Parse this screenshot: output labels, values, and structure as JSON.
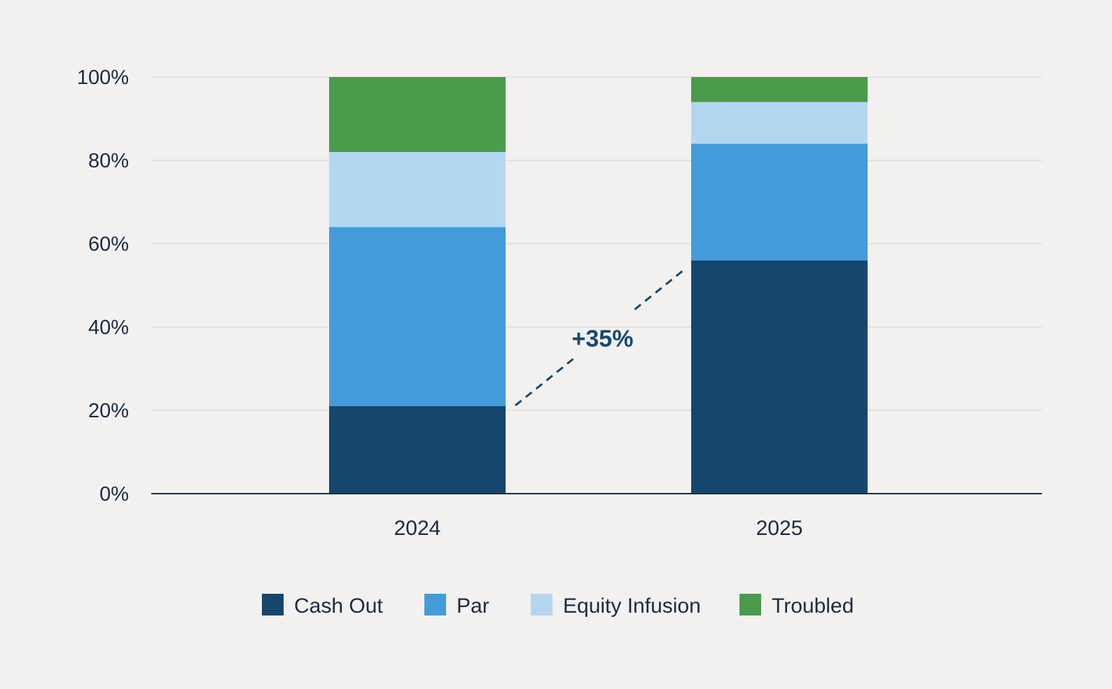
{
  "chart_data": {
    "type": "bar",
    "stacked": true,
    "categories": [
      "2024",
      "2025"
    ],
    "series": [
      {
        "name": "Cash Out",
        "color": "#15476e",
        "values": [
          21,
          56
        ]
      },
      {
        "name": "Par",
        "color": "#449bdb",
        "values": [
          43,
          28
        ]
      },
      {
        "name": "Equity Infusion",
        "color": "#b4d7f1",
        "values": [
          18,
          10
        ]
      },
      {
        "name": "Troubled",
        "color": "#4a9b4b",
        "values": [
          18,
          6
        ]
      }
    ],
    "ylim": [
      0,
      100
    ],
    "yticks": [
      0,
      20,
      40,
      60,
      80,
      100
    ],
    "ytick_labels": [
      "0%",
      "20%",
      "40%",
      "60%",
      "80%",
      "100%"
    ],
    "grid": true,
    "legend_position": "bottom",
    "annotation": {
      "text": "+35%",
      "from_series": "Cash Out",
      "style": "dashed"
    }
  }
}
